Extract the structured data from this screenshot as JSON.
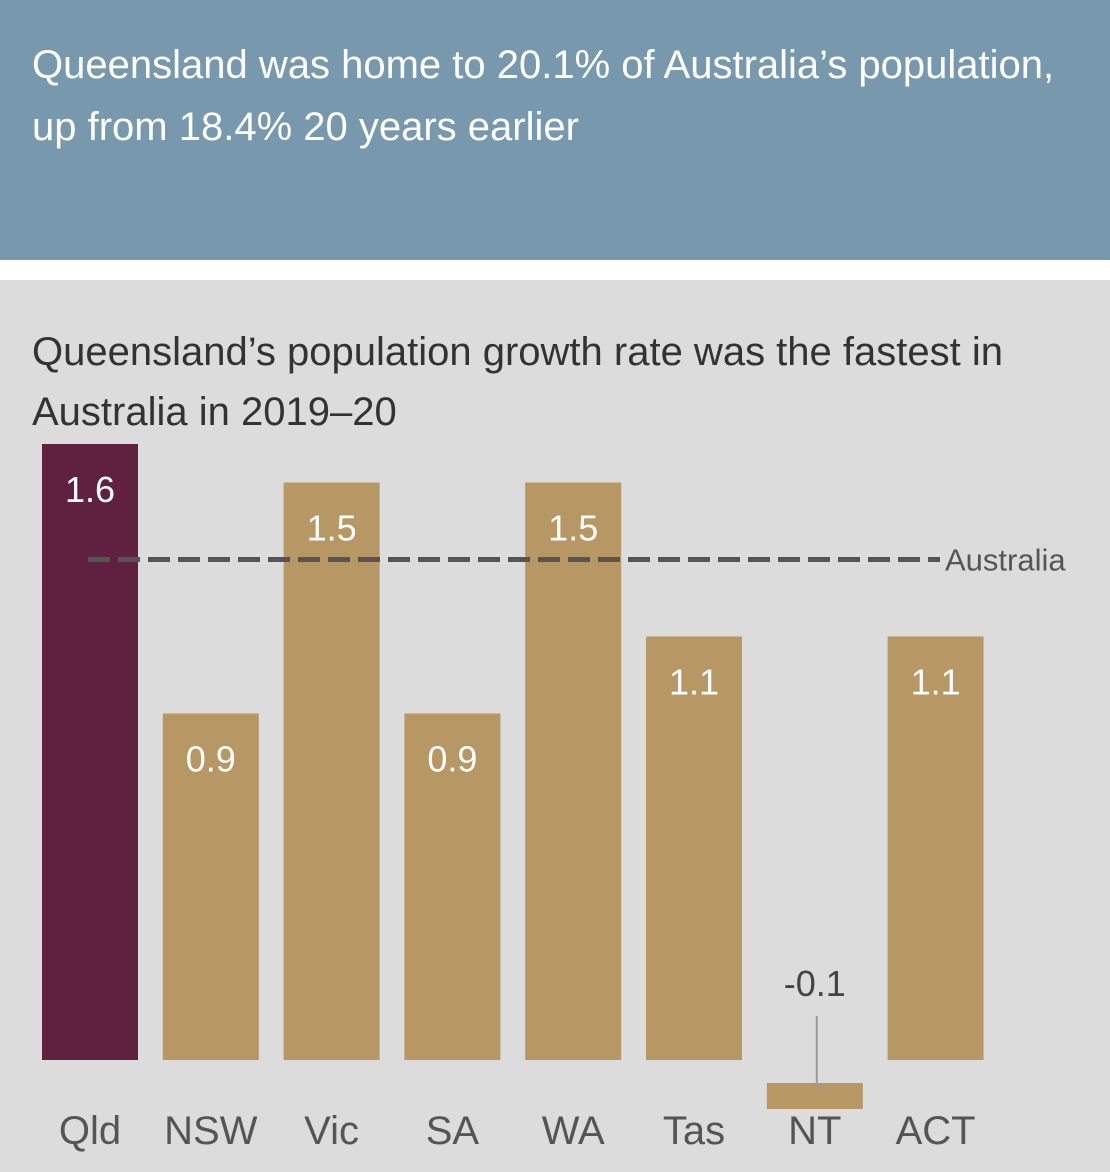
{
  "banner": {
    "text": "Queensland was home to 20.1% of Australia’s population, up from 18.4% 20 years earlier"
  },
  "chart_title": "Queensland’s population growth rate was the fastest in Australia in 2019–20",
  "colors": {
    "banner_bg": "#7898ad",
    "panel_bg": "#dcdcdc",
    "highlight_bar": "#60203f",
    "bar": "#b79764",
    "australia_line": "#555555"
  },
  "chart_data": {
    "type": "bar",
    "title": "Queensland’s population growth rate was the fastest in Australia in 2019–20",
    "xlabel": "",
    "ylabel": "",
    "categories": [
      "Qld",
      "NSW",
      "Vic",
      "SA",
      "WA",
      "Tas",
      "NT",
      "ACT"
    ],
    "values": [
      1.6,
      0.9,
      1.5,
      0.9,
      1.5,
      1.1,
      -0.1,
      1.1
    ],
    "value_labels": [
      "1.6",
      "0.9",
      "1.5",
      "0.9",
      "1.5",
      "1.1",
      "-0.1",
      "1.1"
    ],
    "highlight": "Qld",
    "reference_line": {
      "label": "Australia",
      "value": 1.3
    },
    "ylim": [
      -0.07,
      1.6
    ],
    "grid": false,
    "legend": "none"
  }
}
